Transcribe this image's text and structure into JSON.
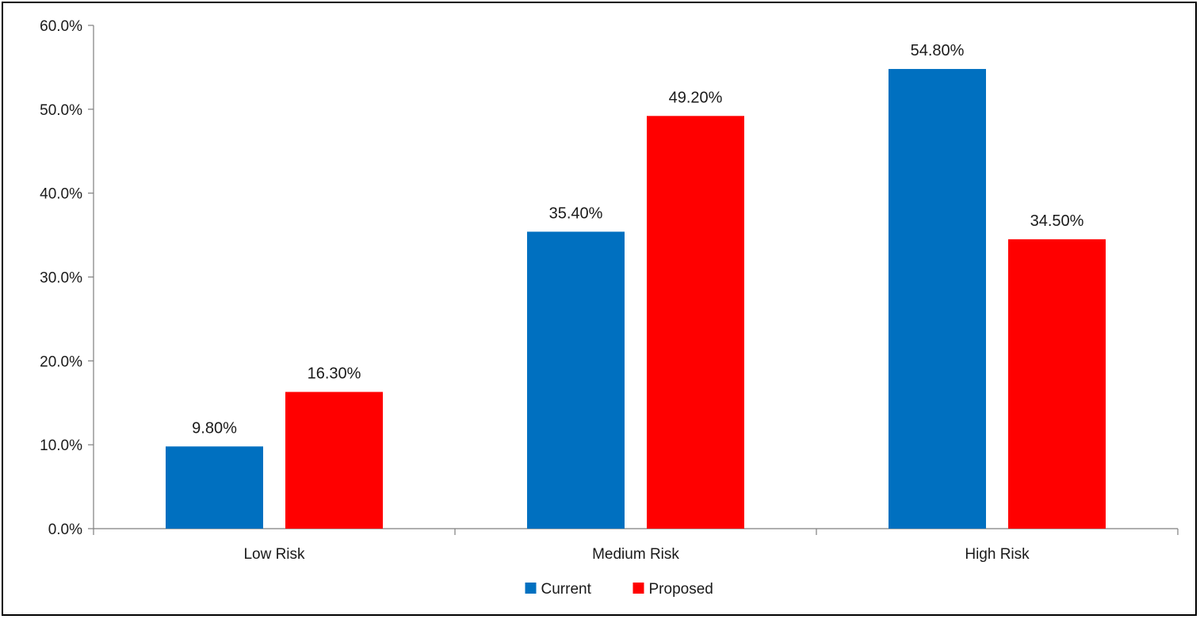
{
  "chart_data": {
    "type": "bar",
    "categories": [
      "Low Risk",
      "Medium Risk",
      "High Risk"
    ],
    "series": [
      {
        "name": "Current",
        "values": [
          9.8,
          35.4,
          54.8
        ],
        "labels": [
          "9.80%",
          "35.40%",
          "54.80%"
        ],
        "color": "#0070C0"
      },
      {
        "name": "Proposed",
        "values": [
          16.3,
          49.2,
          34.5
        ],
        "labels": [
          "16.30%",
          "49.20%",
          "34.50%"
        ],
        "color": "#FF0000"
      }
    ],
    "ylim": [
      0,
      60
    ],
    "yticks": [
      0,
      10,
      20,
      30,
      40,
      50,
      60
    ],
    "ytick_labels": [
      "0.0%",
      "10.0%",
      "20.0%",
      "30.0%",
      "40.0%",
      "50.0%",
      "60.0%"
    ],
    "grid": false,
    "legend_position": "bottom-center",
    "title": "",
    "xlabel": "",
    "ylabel": ""
  }
}
